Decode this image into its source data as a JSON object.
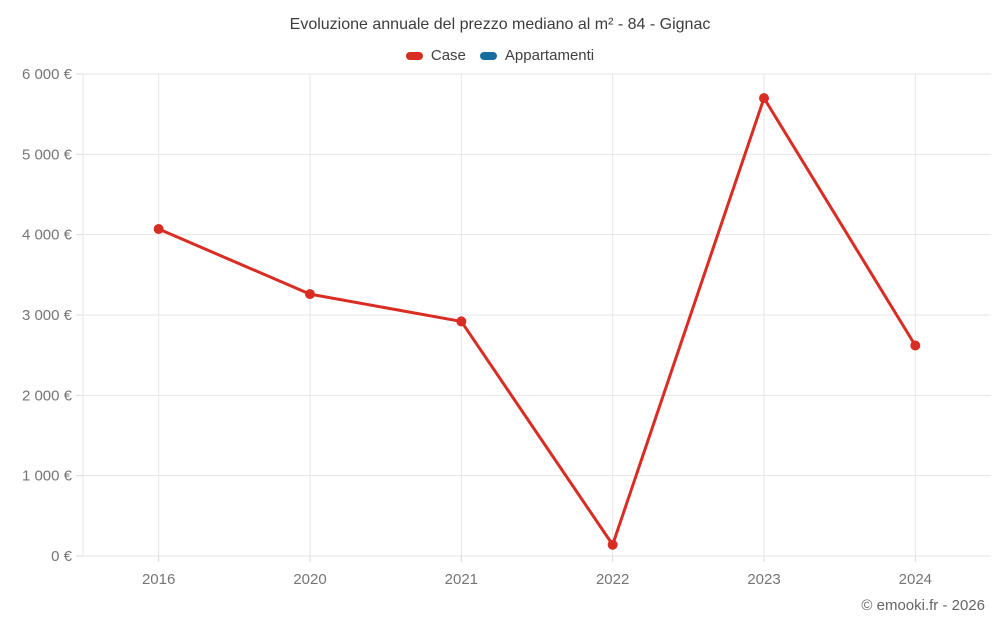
{
  "chart_data": {
    "type": "line",
    "title": "Evoluzione annuale del prezzo mediano al m² - 84 - Gignac",
    "categories": [
      "2016",
      "2020",
      "2021",
      "2022",
      "2023",
      "2024"
    ],
    "series": [
      {
        "name": "Case",
        "color": "#d92d24",
        "values": [
          4070,
          3260,
          2920,
          140,
          5700,
          2620
        ]
      },
      {
        "name": "Appartamenti",
        "color": "#176d9e",
        "values": []
      }
    ],
    "xlabel": "",
    "ylabel": "",
    "ylim": [
      0,
      6000
    ],
    "ytick_step": 1000,
    "ytick_labels": [
      "0 €",
      "1 000 €",
      "2 000 €",
      "3 000 €",
      "4 000 €",
      "5 000 €",
      "6 000 €"
    ],
    "grid": true,
    "legend_position": "top",
    "colors": {
      "grid": "#e6e6e6",
      "tick": "#d9d9d9",
      "axis_label": "#757575"
    }
  },
  "footer": {
    "credit": "© emooki.fr - 2026"
  }
}
